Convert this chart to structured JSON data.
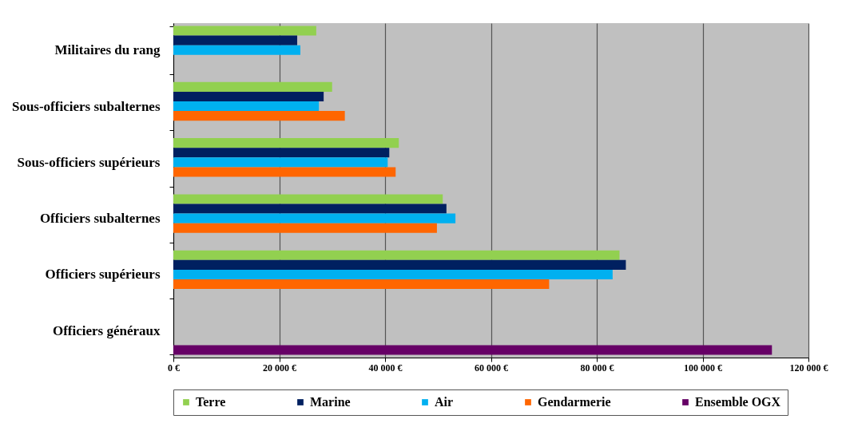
{
  "chart_data": {
    "type": "bar",
    "orientation": "horizontal",
    "categories": [
      "Militaires du rang",
      "Sous-officiers subalternes",
      "Sous-officiers supérieurs",
      "Officiers subalternes",
      "Officiers supérieurs",
      "Officiers généraux"
    ],
    "series": [
      {
        "name": "Terre",
        "color": "#92d050",
        "values": [
          27000,
          30000,
          42600,
          50900,
          84300,
          null
        ]
      },
      {
        "name": "Marine",
        "color": "#002060",
        "values": [
          23400,
          28400,
          40800,
          51600,
          85500,
          null
        ]
      },
      {
        "name": "Air",
        "color": "#00b0f0",
        "values": [
          24000,
          27500,
          40500,
          53300,
          83000,
          null
        ]
      },
      {
        "name": "Gendarmerie",
        "color": "#ff6600",
        "values": [
          null,
          32400,
          42000,
          49800,
          71000,
          null
        ]
      },
      {
        "name": "Ensemble OGX",
        "color": "#660066",
        "values": [
          null,
          null,
          null,
          null,
          null,
          113100
        ]
      }
    ],
    "xlim": [
      0,
      120000
    ],
    "xticks": [
      {
        "value": 0,
        "label": "0 €"
      },
      {
        "value": 20000,
        "label": "20 000 €"
      },
      {
        "value": 40000,
        "label": "40 000 €"
      },
      {
        "value": 60000,
        "label": "60 000 €"
      },
      {
        "value": 80000,
        "label": "80 000 €"
      },
      {
        "value": 100000,
        "label": "100 000 €"
      },
      {
        "value": 120000,
        "label": "120 000 €"
      }
    ],
    "grid": "x",
    "legend": "bottom"
  }
}
